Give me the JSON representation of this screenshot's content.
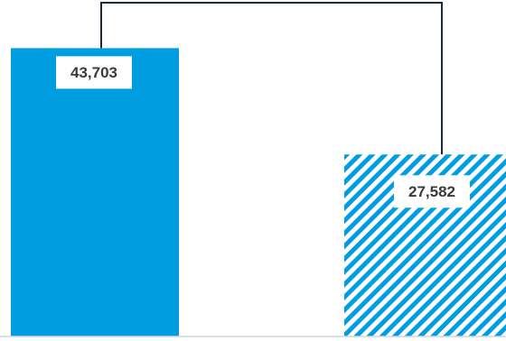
{
  "chart_data": {
    "type": "bar",
    "categories": [
      "",
      ""
    ],
    "values": [
      43703,
      27582
    ],
    "value_labels": [
      "43,703",
      "27,582"
    ],
    "bar_styles": [
      "solid",
      "hatched"
    ],
    "ylim": [
      0,
      51000
    ],
    "connector": true,
    "grid": false,
    "colors": {
      "bar": "#009ee0",
      "connector": "#1a2a3a",
      "label_text": "#3a3a3a",
      "label_bg": "#ffffff",
      "baseline": "#cfd8dc"
    }
  }
}
